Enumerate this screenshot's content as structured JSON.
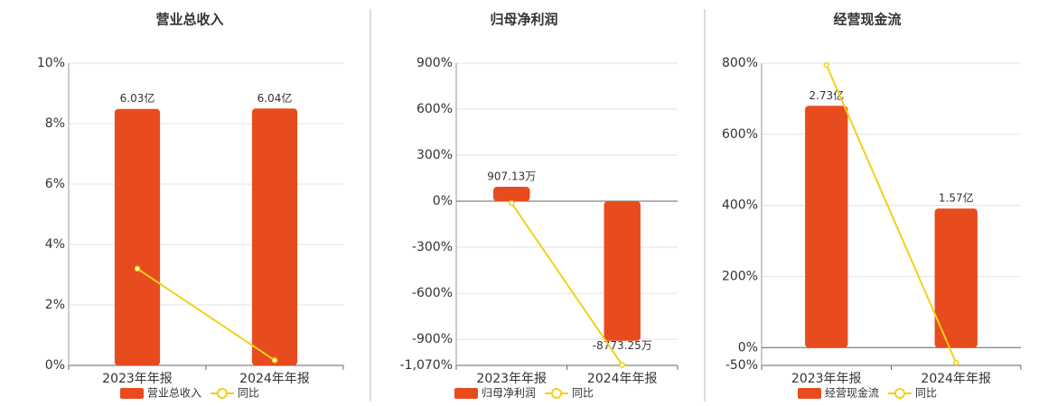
{
  "chart_data": [
    {
      "type": "combo",
      "title": "营业总收入",
      "categories": [
        "2023年年报",
        "2024年年报"
      ],
      "series": [
        {
          "name": "营业总收入",
          "color": "#e84c1e",
          "values": [
            6.03,
            6.04
          ],
          "value_labels": [
            "6.03亿",
            "6.04亿"
          ]
        },
        {
          "name": "同比",
          "color": "#f2d01a",
          "values": [
            3.2,
            0.17
          ]
        }
      ],
      "ylim": [
        0,
        10
      ],
      "yticks": [
        {
          "value": 0,
          "label": "0%"
        },
        {
          "value": 2,
          "label": "2%"
        },
        {
          "value": 4,
          "label": "4%"
        },
        {
          "value": 6,
          "label": "6%"
        },
        {
          "value": 8,
          "label": "8%"
        },
        {
          "value": 10,
          "label": "10%"
        }
      ],
      "grid": true
    },
    {
      "type": "combo",
      "title": "归母净利润",
      "categories": [
        "2023年年报",
        "2024年年报"
      ],
      "series": [
        {
          "name": "归母净利润",
          "color": "#e84c1e",
          "values": [
            907.13,
            -8773.25
          ],
          "value_labels": [
            "907.13万",
            "-8773.25万"
          ]
        },
        {
          "name": "同比",
          "color": "#f2d01a",
          "values": [
            -12,
            -1067
          ]
        }
      ],
      "ylim": [
        -1070,
        900
      ],
      "yticks": [
        {
          "value": -1070,
          "label": "-1,070%"
        },
        {
          "value": -900,
          "label": "-900%"
        },
        {
          "value": -600,
          "label": "-600%"
        },
        {
          "value": -300,
          "label": "-300%"
        },
        {
          "value": 0,
          "label": "0%"
        },
        {
          "value": 300,
          "label": "300%"
        },
        {
          "value": 600,
          "label": "600%"
        },
        {
          "value": 900,
          "label": "900%"
        }
      ],
      "grid": true
    },
    {
      "type": "combo",
      "title": "经营现金流",
      "categories": [
        "2023年年报",
        "2024年年报"
      ],
      "series": [
        {
          "name": "经营现金流",
          "color": "#e84c1e",
          "values": [
            2.73,
            1.57
          ],
          "value_labels": [
            "2.73亿",
            "1.57亿"
          ]
        },
        {
          "name": "同比",
          "color": "#f2d01a",
          "values": [
            795,
            -42.5
          ]
        }
      ],
      "ylim": [
        -50,
        800
      ],
      "yticks": [
        {
          "value": -50,
          "label": "-50%"
        },
        {
          "value": 0,
          "label": "0%"
        },
        {
          "value": 200,
          "label": "200%"
        },
        {
          "value": 400,
          "label": "400%"
        },
        {
          "value": 600,
          "label": "600%"
        },
        {
          "value": 800,
          "label": "800%"
        }
      ],
      "grid": true
    }
  ]
}
